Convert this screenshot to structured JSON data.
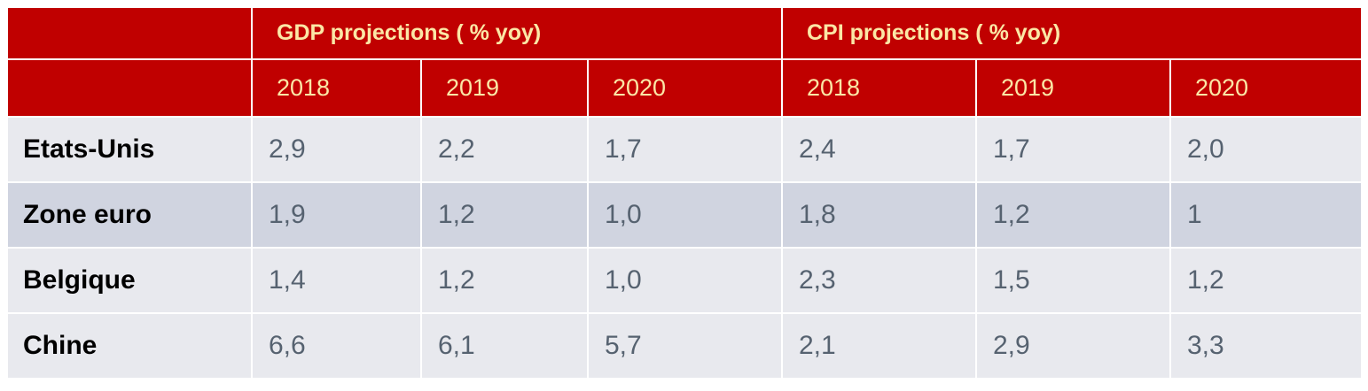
{
  "header": {
    "groups": [
      {
        "label": "GDP projections ( % yoy)"
      },
      {
        "label": "CPI projections ( % yoy)"
      }
    ],
    "years": [
      "2018",
      "2019",
      "2020",
      "2018",
      "2019",
      "2020"
    ]
  },
  "rows": [
    {
      "country": "Etats-Unis",
      "values": [
        "2,9",
        "2,2",
        "1,7",
        "2,4",
        "1,7",
        "2,0"
      ]
    },
    {
      "country": "Zone euro",
      "values": [
        "1,9",
        "1,2",
        "1,0",
        "1,8",
        "1,2",
        "1"
      ]
    },
    {
      "country": "Belgique",
      "values": [
        "1,4",
        "1,2",
        "1,0",
        "2,3",
        "1,5",
        "1,2"
      ]
    },
    {
      "country": "Chine",
      "values": [
        "6,6",
        "6,1",
        "5,7",
        "2,1",
        "2,9",
        "3,3"
      ]
    }
  ],
  "colors": {
    "header_bg": "#c00000",
    "header_text": "#fbe7a6",
    "row_light": "#e8e9ee",
    "row_dark": "#d0d4e0",
    "value_text": "#566270"
  }
}
